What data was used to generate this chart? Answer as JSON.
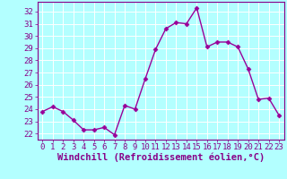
{
  "x": [
    0,
    1,
    2,
    3,
    4,
    5,
    6,
    7,
    8,
    9,
    10,
    11,
    12,
    13,
    14,
    15,
    16,
    17,
    18,
    19,
    20,
    21,
    22,
    23
  ],
  "y": [
    23.8,
    24.2,
    23.8,
    23.1,
    22.3,
    22.3,
    22.5,
    21.9,
    24.3,
    24.0,
    26.5,
    28.9,
    30.6,
    31.1,
    31.0,
    32.3,
    29.1,
    29.5,
    29.5,
    29.1,
    27.3,
    24.8,
    24.9,
    23.5
  ],
  "line_color": "#990099",
  "marker": "D",
  "marker_size": 2.5,
  "bg_color": "#b3ffff",
  "grid_color": "#ffffff",
  "xlabel": "Windchill (Refroidissement éolien,°C)",
  "ylim": [
    21.5,
    32.8
  ],
  "yticks": [
    22,
    23,
    24,
    25,
    26,
    27,
    28,
    29,
    30,
    31,
    32
  ],
  "xticks": [
    0,
    1,
    2,
    3,
    4,
    5,
    6,
    7,
    8,
    9,
    10,
    11,
    12,
    13,
    14,
    15,
    16,
    17,
    18,
    19,
    20,
    21,
    22,
    23
  ],
  "tick_label_fontsize": 6.5,
  "xlabel_fontsize": 7.5,
  "line_width": 1.0,
  "tick_color": "#880088",
  "label_color": "#880088",
  "spine_color": "#880088",
  "axis_bg": "#b3ffff"
}
